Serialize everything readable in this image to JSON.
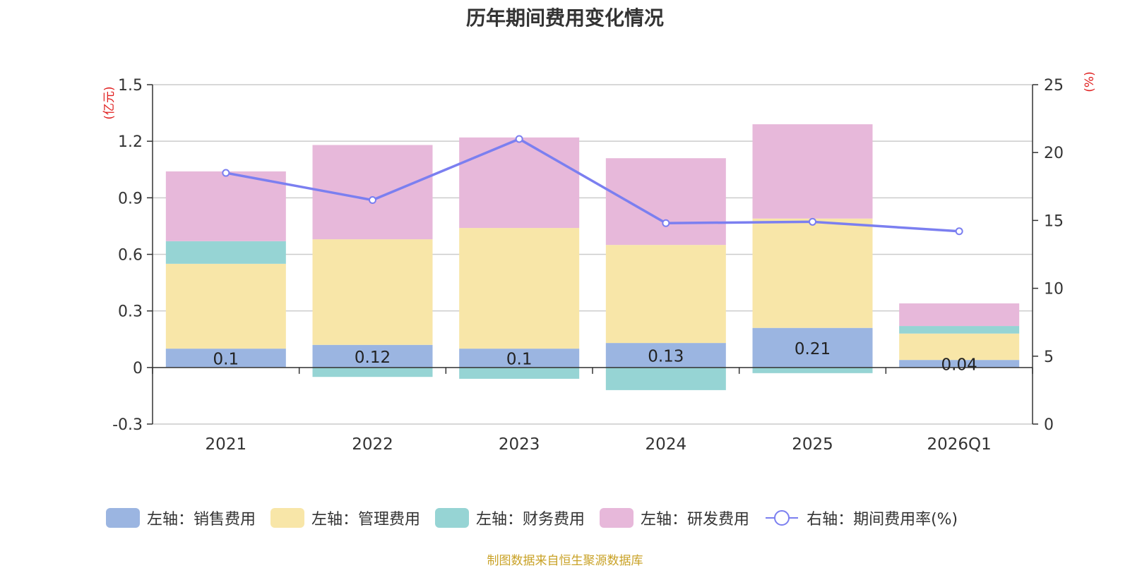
{
  "chart_data": {
    "type": "bar",
    "title": "历年期间费用变化情况",
    "categories": [
      "2021",
      "2022",
      "2023",
      "2024",
      "2025",
      "2026Q1"
    ],
    "y_left": {
      "unit": "(亿元)",
      "min": -0.3,
      "max": 1.5,
      "ticks": [
        -0.3,
        0,
        0.3,
        0.6,
        0.9,
        1.2,
        1.5
      ]
    },
    "y_right": {
      "unit": "(%)",
      "min": 0,
      "max": 25,
      "ticks": [
        0,
        5,
        10,
        15,
        20,
        25
      ]
    },
    "series": [
      {
        "name": "左轴：销售费用",
        "color": "#9bb5e1",
        "axis": "left",
        "type": "bar",
        "values": [
          0.1,
          0.12,
          0.1,
          0.13,
          0.21,
          0.04
        ],
        "labels": [
          "0.1",
          "0.12",
          "0.1",
          "0.13",
          "0.21",
          "0.04"
        ]
      },
      {
        "name": "左轴：管理费用",
        "color": "#f8e6a8",
        "axis": "left",
        "type": "bar",
        "values": [
          0.45,
          0.56,
          0.64,
          0.52,
          0.58,
          0.14
        ]
      },
      {
        "name": "左轴：财务费用",
        "color": "#96d4d4",
        "axis": "left",
        "type": "bar",
        "values": [
          0.12,
          -0.05,
          -0.06,
          -0.12,
          -0.03,
          0.04
        ]
      },
      {
        "name": "左轴：研发费用",
        "color": "#e7b8da",
        "axis": "left",
        "type": "bar",
        "values": [
          0.37,
          0.5,
          0.48,
          0.46,
          0.5,
          0.12
        ]
      },
      {
        "name": "右轴：期间费用率(%)",
        "color": "#7b7ff0",
        "axis": "right",
        "type": "line",
        "values": [
          18.5,
          16.5,
          21,
          14.8,
          14.9,
          14.2
        ]
      }
    ]
  },
  "source": "制图数据来自恒生聚源数据库"
}
